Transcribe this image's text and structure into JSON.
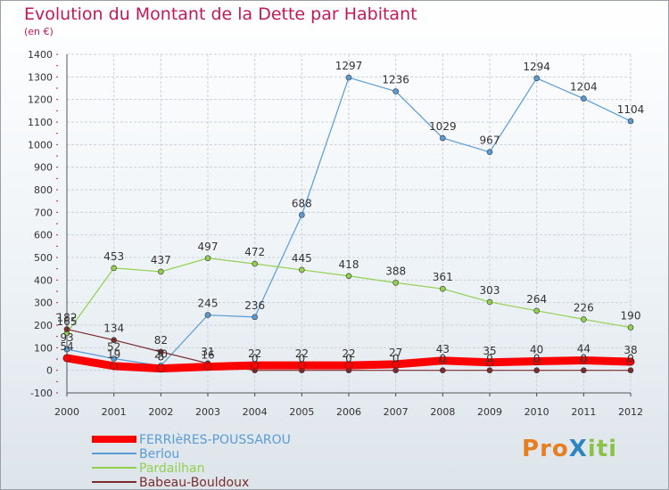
{
  "title": "Evolution du Montant de la Dette par Habitant",
  "subtitle": "(en €)",
  "logo": {
    "text": "Proxiti",
    "letters": [
      {
        "ch": "P",
        "color": "#e67e22"
      },
      {
        "ch": "r",
        "color": "#e67e22"
      },
      {
        "ch": "o",
        "color": "#e67e22"
      },
      {
        "ch": "X",
        "color": "#2e86c1"
      },
      {
        "ch": "i",
        "color": "#8bc34a"
      },
      {
        "ch": "t",
        "color": "#8bc34a"
      },
      {
        "ch": "i",
        "color": "#8bc34a"
      }
    ]
  },
  "chart_data": {
    "type": "line",
    "title": "Evolution du Montant de la Dette par Habitant",
    "ylabel": "(en €)",
    "xlabel": "",
    "x": [
      "2000",
      "2001",
      "2002",
      "2003",
      "2004",
      "2005",
      "2006",
      "2007",
      "2008",
      "2009",
      "2010",
      "2011",
      "2012"
    ],
    "ylim": [
      -100,
      1400
    ],
    "yticks": [
      -100,
      0,
      100,
      200,
      300,
      400,
      500,
      600,
      700,
      800,
      900,
      1000,
      1100,
      1200,
      1300,
      1400
    ],
    "grid": true,
    "legend_position": "bottom-left",
    "series": [
      {
        "name": "FERRIèRES-POUSSAROU",
        "color": "#ff0000",
        "values": [
          54,
          19,
          8,
          16,
          22,
          22,
          22,
          27,
          43,
          35,
          40,
          44,
          38
        ]
      },
      {
        "name": "Berlou",
        "color": "#5b9bd5",
        "values": [
          93,
          52,
          20,
          245,
          236,
          688,
          1297,
          1236,
          1029,
          967,
          1294,
          1204,
          1104
        ]
      },
      {
        "name": "Pardailhan",
        "color": "#92d050",
        "values": [
          165,
          453,
          437,
          497,
          472,
          445,
          418,
          388,
          361,
          303,
          264,
          226,
          190
        ]
      },
      {
        "name": "Babeau-Bouldoux",
        "color": "#7b2d2d",
        "values": [
          182,
          134,
          82,
          31,
          0,
          0,
          0,
          0,
          0,
          0,
          0,
          0,
          0
        ]
      }
    ]
  }
}
